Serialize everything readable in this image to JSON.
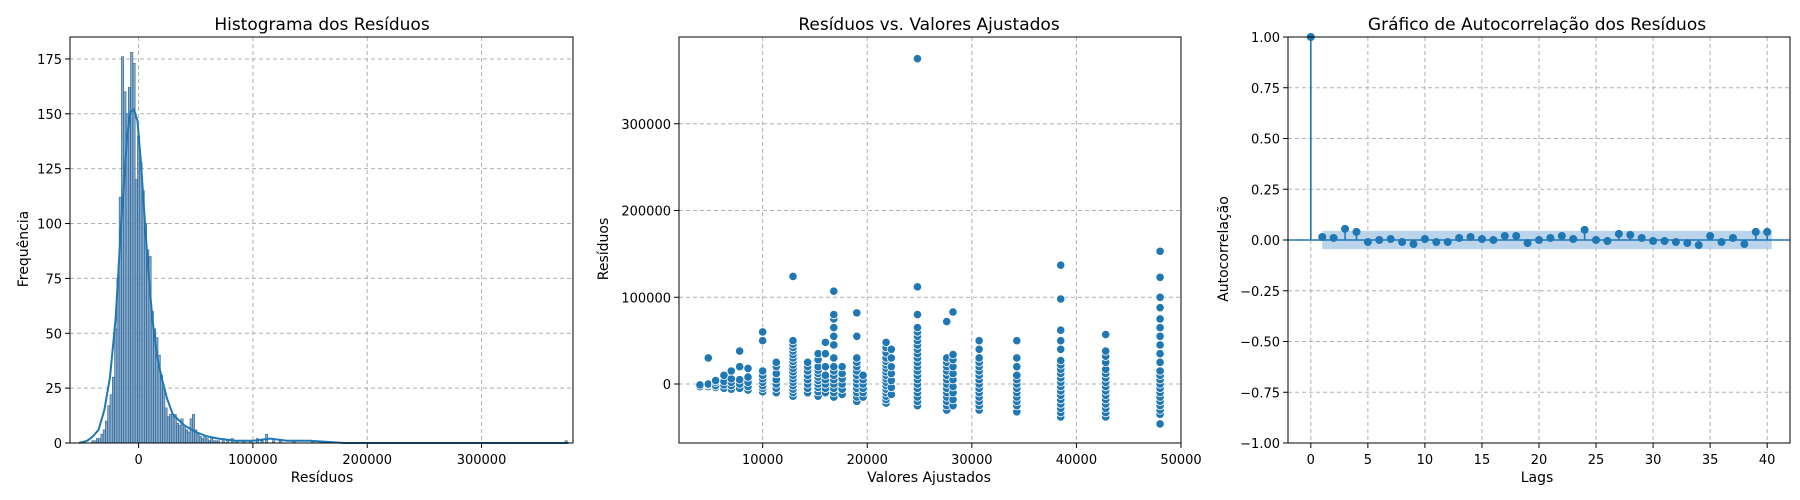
{
  "colors": {
    "primary": "#1f77b4",
    "bar": "#6f9cc5",
    "band": "#a9c9e6",
    "grid": "#b0b0b0"
  },
  "chart_data": [
    {
      "type": "bar",
      "title": "Histograma dos Resíduos",
      "xlabel": "Resíduos",
      "ylabel": "Frequência",
      "xlim": [
        -60000,
        380000
      ],
      "ylim": [
        0,
        185
      ],
      "xticks": [
        0,
        100000,
        200000,
        300000
      ],
      "yticks": [
        0,
        25,
        50,
        75,
        100,
        125,
        150,
        175
      ],
      "bins": [
        {
          "x": -40000,
          "y": 1
        },
        {
          "x": -38000,
          "y": 1
        },
        {
          "x": -36000,
          "y": 2
        },
        {
          "x": -34000,
          "y": 2
        },
        {
          "x": -32000,
          "y": 4
        },
        {
          "x": -30000,
          "y": 6
        },
        {
          "x": -28000,
          "y": 10
        },
        {
          "x": -26000,
          "y": 17
        },
        {
          "x": -24000,
          "y": 22
        },
        {
          "x": -22000,
          "y": 30
        },
        {
          "x": -20000,
          "y": 52
        },
        {
          "x": -18000,
          "y": 75
        },
        {
          "x": -16000,
          "y": 112
        },
        {
          "x": -14000,
          "y": 176
        },
        {
          "x": -12000,
          "y": 160
        },
        {
          "x": -10000,
          "y": 150
        },
        {
          "x": -8000,
          "y": 162
        },
        {
          "x": -6000,
          "y": 178
        },
        {
          "x": -4000,
          "y": 173
        },
        {
          "x": -2000,
          "y": 120
        },
        {
          "x": 0,
          "y": 140
        },
        {
          "x": 2000,
          "y": 128
        },
        {
          "x": 4000,
          "y": 115
        },
        {
          "x": 6000,
          "y": 100
        },
        {
          "x": 8000,
          "y": 88
        },
        {
          "x": 10000,
          "y": 85
        },
        {
          "x": 12000,
          "y": 60
        },
        {
          "x": 14000,
          "y": 52
        },
        {
          "x": 16000,
          "y": 48
        },
        {
          "x": 18000,
          "y": 40
        },
        {
          "x": 20000,
          "y": 31
        },
        {
          "x": 22000,
          "y": 25
        },
        {
          "x": 24000,
          "y": 16
        },
        {
          "x": 26000,
          "y": 12
        },
        {
          "x": 28000,
          "y": 13
        },
        {
          "x": 30000,
          "y": 12
        },
        {
          "x": 32000,
          "y": 13
        },
        {
          "x": 34000,
          "y": 9
        },
        {
          "x": 36000,
          "y": 8
        },
        {
          "x": 38000,
          "y": 11
        },
        {
          "x": 40000,
          "y": 7
        },
        {
          "x": 42000,
          "y": 6
        },
        {
          "x": 44000,
          "y": 5
        },
        {
          "x": 46000,
          "y": 11
        },
        {
          "x": 48000,
          "y": 13
        },
        {
          "x": 50000,
          "y": 6
        },
        {
          "x": 52000,
          "y": 4
        },
        {
          "x": 54000,
          "y": 3
        },
        {
          "x": 56000,
          "y": 2
        },
        {
          "x": 58000,
          "y": 3
        },
        {
          "x": 60000,
          "y": 2
        },
        {
          "x": 62000,
          "y": 1
        },
        {
          "x": 64000,
          "y": 2
        },
        {
          "x": 66000,
          "y": 1
        },
        {
          "x": 68000,
          "y": 1
        },
        {
          "x": 70000,
          "y": 1
        },
        {
          "x": 74000,
          "y": 1
        },
        {
          "x": 78000,
          "y": 1
        },
        {
          "x": 82000,
          "y": 2
        },
        {
          "x": 86000,
          "y": 1
        },
        {
          "x": 92000,
          "y": 1
        },
        {
          "x": 98000,
          "y": 1
        },
        {
          "x": 104000,
          "y": 2
        },
        {
          "x": 108000,
          "y": 1
        },
        {
          "x": 112000,
          "y": 4
        },
        {
          "x": 118000,
          "y": 1
        },
        {
          "x": 124000,
          "y": 1
        },
        {
          "x": 136000,
          "y": 1
        },
        {
          "x": 152000,
          "y": 1
        },
        {
          "x": 374000,
          "y": 1
        }
      ],
      "bin_width": 2000,
      "kde": [
        [
          -52000,
          0
        ],
        [
          -45000,
          1
        ],
        [
          -40000,
          3
        ],
        [
          -35000,
          6
        ],
        [
          -30000,
          15
        ],
        [
          -25000,
          30
        ],
        [
          -20000,
          57
        ],
        [
          -15000,
          102
        ],
        [
          -10000,
          140
        ],
        [
          -7000,
          151
        ],
        [
          -4000,
          152
        ],
        [
          -1000,
          147
        ],
        [
          2000,
          128
        ],
        [
          5000,
          105
        ],
        [
          8000,
          82
        ],
        [
          12000,
          57
        ],
        [
          16000,
          40
        ],
        [
          20000,
          30
        ],
        [
          25000,
          20
        ],
        [
          30000,
          13
        ],
        [
          40000,
          8
        ],
        [
          50000,
          5
        ],
        [
          60000,
          3
        ],
        [
          70000,
          2
        ],
        [
          85000,
          1
        ],
        [
          100000,
          1
        ],
        [
          115000,
          2
        ],
        [
          130000,
          1
        ],
        [
          150000,
          1
        ],
        [
          180000,
          0
        ],
        [
          250000,
          0
        ],
        [
          300000,
          0
        ],
        [
          376000,
          0
        ]
      ]
    },
    {
      "type": "scatter",
      "title": "Resíduos vs. Valores Ajustados",
      "xlabel": "Valores Ajustados",
      "ylabel": "Resíduos",
      "xlim": [
        2000,
        50000
      ],
      "ylim": [
        -68000,
        400000
      ],
      "xticks": [
        10000,
        20000,
        30000,
        40000,
        50000
      ],
      "yticks": [
        0,
        100000,
        200000,
        300000
      ],
      "columns": [
        {
          "x": 4000,
          "y": [
            -2000,
            -3000,
            -1000
          ]
        },
        {
          "x": 4800,
          "y": [
            -3000,
            -1000,
            0,
            30000
          ]
        },
        {
          "x": 5500,
          "y": [
            -4000,
            -2000,
            2000,
            4000
          ]
        },
        {
          "x": 6300,
          "y": [
            -5000,
            -1000,
            3000,
            10000
          ]
        },
        {
          "x": 7000,
          "y": [
            -6000,
            -2000,
            2000,
            6000,
            15000
          ]
        },
        {
          "x": 7800,
          "y": [
            -5000,
            0,
            5000,
            20000,
            38000
          ]
        },
        {
          "x": 8600,
          "y": [
            -7000,
            -3000,
            2000,
            8000,
            18000
          ]
        },
        {
          "x": 10000,
          "y": [
            -9000,
            -5000,
            -2000,
            2000,
            6000,
            10000,
            15000,
            50000,
            60000
          ]
        },
        {
          "x": 11300,
          "y": [
            -10000,
            -5000,
            0,
            5000,
            12000,
            20000,
            25000
          ]
        },
        {
          "x": 12900,
          "y": [
            -14000,
            -10000,
            -6000,
            -2000,
            2000,
            6000,
            10000,
            14000,
            18000,
            22000,
            26000,
            30000,
            34000,
            38000,
            42000,
            46000,
            50000,
            124000
          ]
        },
        {
          "x": 14300,
          "y": [
            -10000,
            -5000,
            0,
            5000,
            10000,
            15000,
            20000,
            25000
          ]
        },
        {
          "x": 15300,
          "y": [
            -14000,
            -9000,
            -4000,
            0,
            4000,
            8000,
            12000,
            16000,
            20000,
            28000,
            35000
          ]
        },
        {
          "x": 16000,
          "y": [
            -10000,
            -5000,
            0,
            5000,
            10000,
            20000,
            35000,
            48000
          ]
        },
        {
          "x": 16800,
          "y": [
            -15000,
            -10000,
            -5000,
            0,
            5000,
            10000,
            15000,
            20000,
            30000,
            45000,
            55000,
            65000,
            75000,
            80000,
            107000
          ]
        },
        {
          "x": 17600,
          "y": [
            -12000,
            -6000,
            0,
            6000,
            12000,
            20000
          ]
        },
        {
          "x": 19000,
          "y": [
            -20000,
            -15000,
            -10000,
            -5000,
            0,
            5000,
            10000,
            15000,
            20000,
            25000,
            30000,
            55000,
            82000
          ]
        },
        {
          "x": 19600,
          "y": [
            -15000,
            -10000,
            -5000,
            0,
            5000,
            10000
          ]
        },
        {
          "x": 21800,
          "y": [
            -22000,
            -18000,
            -14000,
            -10000,
            -6000,
            -2000,
            2000,
            6000,
            10000,
            14000,
            18000,
            22000,
            26000,
            30000,
            36000,
            42000,
            48000
          ]
        },
        {
          "x": 22300,
          "y": [
            -12000,
            -4000,
            4000,
            12000,
            20000,
            30000,
            40000
          ]
        },
        {
          "x": 24800,
          "y": [
            -25000,
            -20000,
            -15000,
            -10000,
            -5000,
            0,
            5000,
            10000,
            15000,
            20000,
            25000,
            30000,
            35000,
            40000,
            45000,
            50000,
            55000,
            60000,
            65000,
            80000,
            112000,
            375000
          ]
        },
        {
          "x": 27600,
          "y": [
            -30000,
            -25000,
            -20000,
            -15000,
            -10000,
            -5000,
            0,
            5000,
            10000,
            15000,
            20000,
            25000,
            30000,
            72000
          ]
        },
        {
          "x": 28200,
          "y": [
            -25000,
            -18000,
            -10000,
            -3000,
            5000,
            12000,
            20000,
            28000,
            34000,
            83000
          ]
        },
        {
          "x": 30700,
          "y": [
            -30000,
            -25000,
            -20000,
            -15000,
            -10000,
            -5000,
            0,
            5000,
            10000,
            15000,
            20000,
            25000,
            30000,
            40000,
            50000
          ]
        },
        {
          "x": 34300,
          "y": [
            -32000,
            -25000,
            -20000,
            -15000,
            -10000,
            -5000,
            0,
            5000,
            10000,
            20000,
            30000,
            50000
          ]
        },
        {
          "x": 38500,
          "y": [
            -38000,
            -33000,
            -28000,
            -23000,
            -18000,
            -13000,
            -8000,
            -3000,
            2000,
            7000,
            12000,
            17000,
            22000,
            27000,
            40000,
            50000,
            62000,
            98000,
            137000
          ]
        },
        {
          "x": 42800,
          "y": [
            -38000,
            -33000,
            -28000,
            -23000,
            -18000,
            -13000,
            -8000,
            -3000,
            2000,
            7000,
            12000,
            17000,
            25000,
            32000,
            38000,
            57000
          ]
        },
        {
          "x": 48000,
          "y": [
            -46000,
            -35000,
            -30000,
            -25000,
            -20000,
            -15000,
            -10000,
            -5000,
            0,
            5000,
            10000,
            15000,
            25000,
            35000,
            45000,
            55000,
            65000,
            75000,
            88000,
            100000,
            123000,
            153000
          ]
        }
      ]
    },
    {
      "type": "scatter",
      "title": "Gráfico de Autocorrelação dos Resíduos",
      "xlabel": "Lags",
      "ylabel": "Autocorrelação",
      "xlim": [
        -2,
        42
      ],
      "ylim": [
        -1.0,
        1.0
      ],
      "xticks": [
        0,
        5,
        10,
        15,
        20,
        25,
        30,
        35,
        40
      ],
      "yticks": [
        -1.0,
        -0.75,
        -0.5,
        -0.25,
        0.0,
        0.25,
        0.5,
        0.75,
        1.0
      ],
      "ytick_labels": [
        "−1.00",
        "−0.75",
        "−0.50",
        "−0.25",
        "0.00",
        "0.25",
        "0.50",
        "0.75",
        "1.00"
      ],
      "confidence_band": 0.045,
      "lags": [
        0,
        1,
        2,
        3,
        4,
        5,
        6,
        7,
        8,
        9,
        10,
        11,
        12,
        13,
        14,
        15,
        16,
        17,
        18,
        19,
        20,
        21,
        22,
        23,
        24,
        25,
        26,
        27,
        28,
        29,
        30,
        31,
        32,
        33,
        34,
        35,
        36,
        37,
        38,
        39,
        40
      ],
      "acf": [
        1.0,
        0.015,
        0.01,
        0.055,
        0.04,
        -0.01,
        0.0,
        0.005,
        -0.01,
        -0.02,
        0.005,
        -0.01,
        -0.01,
        0.01,
        0.015,
        0.005,
        0.0,
        0.02,
        0.02,
        -0.015,
        0.0,
        0.01,
        0.02,
        0.005,
        0.05,
        0.0,
        -0.005,
        0.03,
        0.025,
        0.01,
        -0.005,
        -0.005,
        -0.01,
        -0.015,
        -0.025,
        0.02,
        -0.01,
        0.01,
        -0.02,
        0.04,
        0.04
      ]
    }
  ]
}
